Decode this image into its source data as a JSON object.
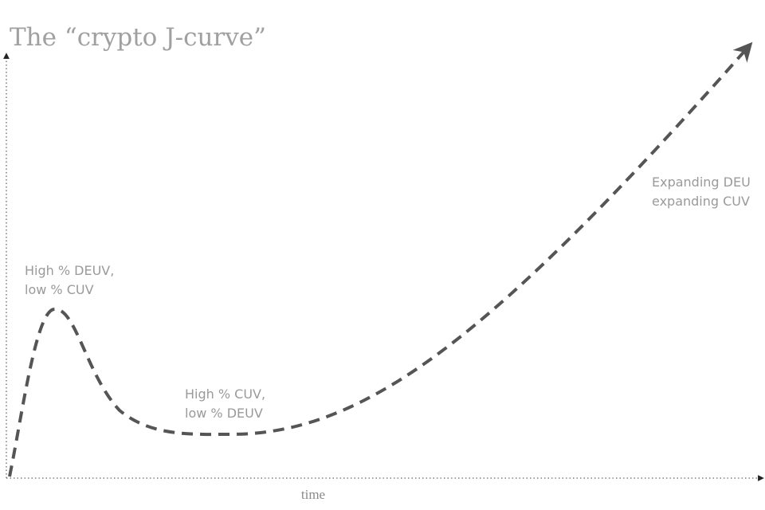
{
  "title": "The “crypto J-curve”",
  "annotations": [
    {
      "lines": [
        "High % DEUV,",
        "low % CUV"
      ]
    },
    {
      "lines": [
        "High % CUV,",
        "low % DEUV"
      ]
    },
    {
      "lines": [
        "Expanding DEU",
        "expanding CUV"
      ]
    }
  ],
  "x_axis_label": "time"
}
